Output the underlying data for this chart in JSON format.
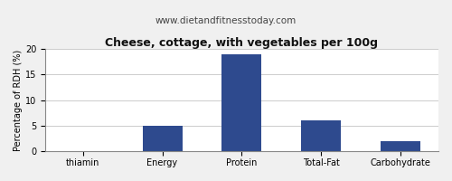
{
  "title": "Cheese, cottage, with vegetables per 100g",
  "subtitle": "www.dietandfitnesstoday.com",
  "categories": [
    "thiamin",
    "Energy",
    "Protein",
    "Total-Fat",
    "Carbohydrate"
  ],
  "values": [
    0,
    5,
    19,
    6,
    2
  ],
  "bar_color": "#2e4a8e",
  "ylabel": "Percentage of RDH (%)",
  "ylim": [
    0,
    20
  ],
  "yticks": [
    0,
    5,
    10,
    15,
    20
  ],
  "background_color": "#f0f0f0",
  "plot_bg_color": "#ffffff",
  "title_fontsize": 9,
  "subtitle_fontsize": 7.5,
  "ylabel_fontsize": 7,
  "tick_fontsize": 7,
  "grid_color": "#cccccc",
  "border_color": "#aaaaaa"
}
